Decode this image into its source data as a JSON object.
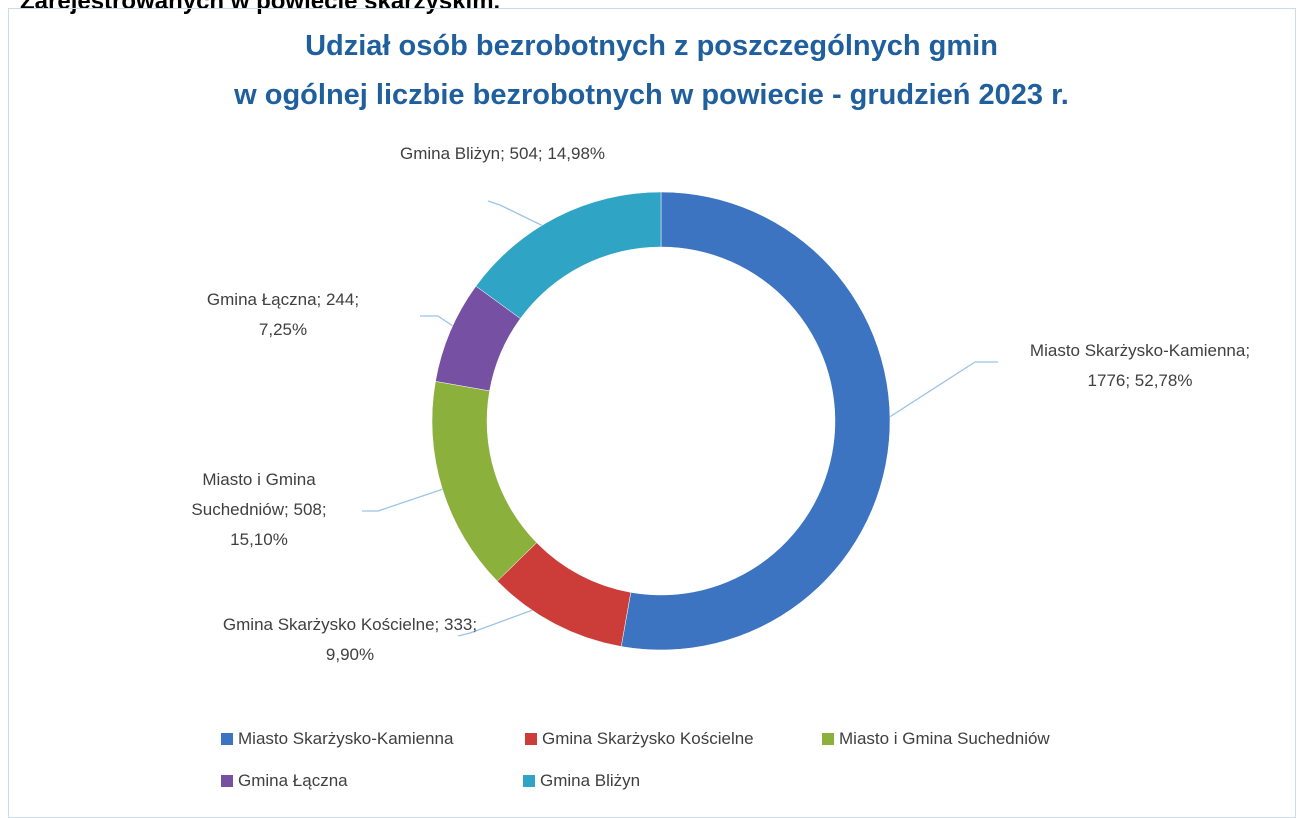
{
  "header_text": "Zarejestrowanych w powiecie skarżyskim.",
  "chart_data": {
    "type": "donut",
    "title_lines": [
      "Udział osób bezrobotnych z poszczególnych gmin",
      "w ogólnej liczbie bezrobotnych w powiecie - grudzień 2023 r."
    ],
    "categories": [
      "Miasto Skarżysko-Kamienna",
      "Gmina Skarżysko Kościelne",
      "Miasto i Gmina Suchedniów",
      "Gmina Łączna",
      "Gmina Bliżyn"
    ],
    "values": [
      1776,
      333,
      508,
      244,
      504
    ],
    "data_labels": [
      "Miasto Skarżysko-Kamienna; 1776; 52,78%",
      "Gmina Skarżysko Kościelne; 333; 9,90%",
      "Miasto i Gmina Suchedniów; 508; 15,10%",
      "Gmina Łączna; 244; 7,25%",
      "Gmina Bliżyn; 504; 14,98%"
    ],
    "colors": [
      "#3d74c2",
      "#cc3d3a",
      "#8cb03c",
      "#7650a3",
      "#2fa4c4"
    ],
    "legend": "bottom"
  }
}
